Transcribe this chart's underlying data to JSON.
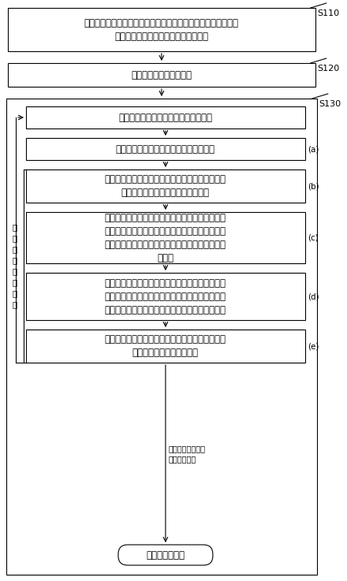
{
  "fig_width": 4.4,
  "fig_height": 7.37,
  "dpi": 100,
  "bg_color": "#ffffff",
  "s110_label": "S110",
  "s120_label": "S120",
  "s130_label": "S130",
  "box1_text": "基于待模拟的催化重整装置生产时的原料数据和产物数据，构建\n分子级别的实际反应物集和实际产物集",
  "box2_text": "构建并初始化反应规则集",
  "box3_text": "针对上述反应规则集中的每个反应规则",
  "box_a_text": "筛选出符合当前反应规则的候选反应物集",
  "box_b_text": "对上述候选反应物集中不在上述反应物集中的第一\n反应物进行剔除，得到目标反应物集",
  "box_c_text": "将上述目标反应物集输入至分子水平的反应动力学\n模型进行模拟计算，得到对应的模拟产物集；其中\n上述反应动力学模型基于上述当前反应规则进行反\n应模拟",
  "box_d_text": "根据上述目标反应物集、上述模拟产物集和上述实\n际产物集，在上述目标反应物集中确定符合上述当\n前反应规则但与实际反应过程有偏离的第二反应物",
  "box_e_text": "根据上述第一反应物和第二反应物的结构特征，对\n上述当前反应规则进行调整",
  "box_final_text": "目标反应规则集",
  "label_a": "(a)",
  "label_b": "(b)",
  "label_c": "(c)",
  "label_d": "(d)",
  "label_e": "(e)",
  "side_text": "调\n整\n后\n的\n反\n应\n规\n则",
  "arrow_label": "不存在第一反应物\n和第二反应物",
  "font_size_main": 8.5,
  "font_size_label": 7.5,
  "font_size_side": 7.5,
  "font_size_arrow_label": 7.0,
  "font_size_step": 8.0
}
